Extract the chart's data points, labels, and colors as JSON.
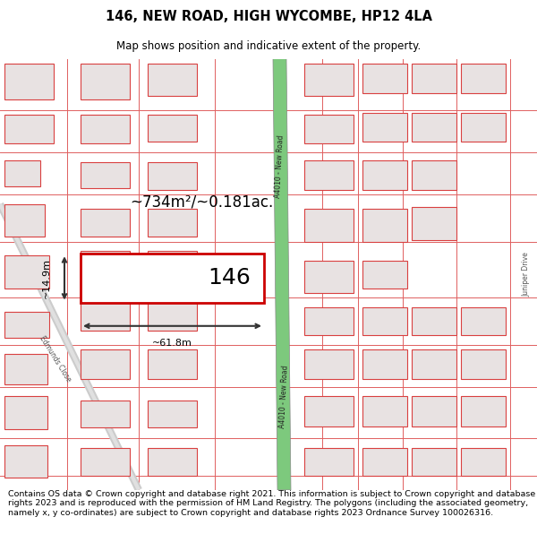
{
  "title": "146, NEW ROAD, HIGH WYCOMBE, HP12 4LA",
  "subtitle": "Map shows position and indicative extent of the property.",
  "footer": "Contains OS data © Crown copyright and database right 2021. This information is subject to Crown copyright and database rights 2023 and is reproduced with the permission of HM Land Registry. The polygons (including the associated geometry, namely x, y co-ordinates) are subject to Crown copyright and database rights 2023 Ordnance Survey 100026316.",
  "background_color": "#ffffff",
  "map_bg": "#f7f2f2",
  "title_fontsize": 10.5,
  "subtitle_fontsize": 8.5,
  "footer_fontsize": 6.8,
  "road_color": "#7dc97d",
  "property_rect_color": "#cc0000",
  "property_label": "146",
  "area_label": "~734m²/~0.181ac.",
  "width_label": "~61.8m",
  "height_label": "~14.9m",
  "road_label": "A4010 - New Road",
  "street_label": "Edmunds Close",
  "right_road_label": "Juniper Drive",
  "building_face": "#e8e2e2",
  "building_edge": "#d94040",
  "plot_line": "#e06060"
}
